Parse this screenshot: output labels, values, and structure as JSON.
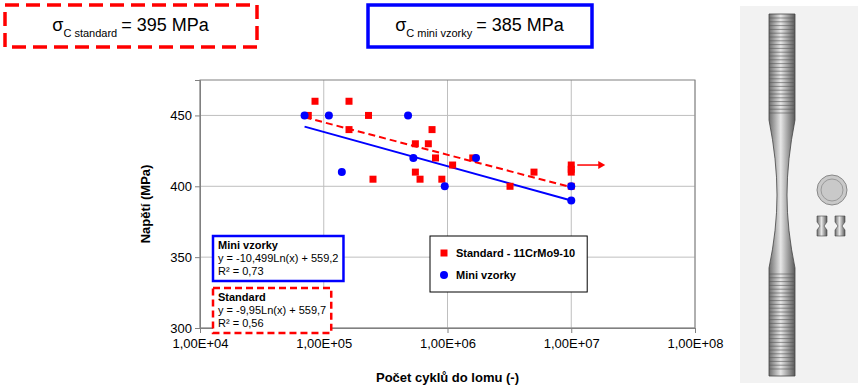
{
  "chart_data": {
    "type": "scatter",
    "x_label": "Počet cyklů do lomu (-)",
    "y_label": "Napětí (MPa)",
    "log": "x",
    "grid": true,
    "legend": "lower right",
    "xlim": [
      10000,
      100000000
    ],
    "xticks": [
      {
        "value": 10000,
        "label": "1,00E+04"
      },
      {
        "value": 100000,
        "label": "1,00E+05"
      },
      {
        "value": 1000000,
        "label": "1,00E+06"
      },
      {
        "value": 10000000,
        "label": "1,00E+07"
      },
      {
        "value": 100000000,
        "label": "1,00E+08"
      }
    ],
    "ylim": [
      300,
      475
    ],
    "yticks": [
      300,
      350,
      400,
      450
    ],
    "series": [
      {
        "name": "Standard - 11CrMo9-10",
        "color": "#ff0000",
        "marker": "square",
        "x": [
          75000,
          85000,
          160000,
          160000,
          230000,
          250000,
          550000,
          550000,
          600000,
          700000,
          750000,
          800000,
          900000,
          1100000,
          1600000,
          3200000,
          5000000,
          10000000,
          10000000,
          10000000,
          10000000
        ],
        "values": [
          450,
          460,
          460,
          440,
          450,
          405,
          430,
          410,
          405,
          430,
          440,
          420,
          405,
          415,
          420,
          400,
          410,
          415,
          412,
          410,
          400
        ],
        "trendline": {
          "label": "Standard",
          "equation": "y = -9,95Ln(x) + 559,7",
          "r2": "R² = 0,56",
          "line_style": "dashed",
          "x": [
            70000,
            10000000
          ],
          "values": [
            448.7,
            399.3
          ]
        }
      },
      {
        "name": "Mini vzorky",
        "color": "#0000ff",
        "marker": "circle",
        "x": [
          70000,
          110000,
          140000,
          480000,
          530000,
          950000,
          1700000,
          10000000,
          10000000
        ],
        "values": [
          450,
          450,
          410,
          450,
          420,
          400,
          420,
          400,
          390
        ],
        "trendline": {
          "label": "Mini vzorky",
          "equation": "y = -10,499Ln(x) + 559,2",
          "r2": "R² = 0,73",
          "line_style": "solid",
          "x": [
            70000,
            10000000
          ],
          "values": [
            442.1,
            390.0
          ]
        }
      }
    ],
    "annotations": [
      {
        "symbol": "σ",
        "subscript": "C standard",
        "text": "= 395 MPa",
        "color": "#ff0000",
        "line_style": "dashed"
      },
      {
        "symbol": "σ",
        "subscript": "C mini vzorky",
        "text": "= 385 MPa",
        "color": "#0000ff",
        "line_style": "solid"
      }
    ]
  }
}
